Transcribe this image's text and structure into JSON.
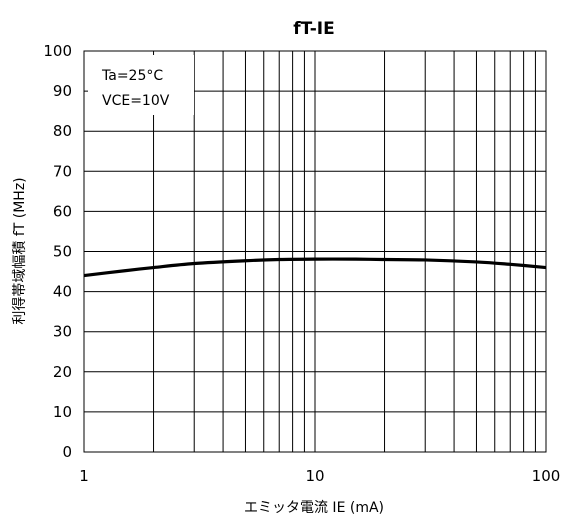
{
  "chart_data": {
    "type": "line",
    "title": "fT-IE",
    "xlabel": "エミッタ電流 IE (mA)",
    "ylabel": "利得帯域幅積 fT (MHz)",
    "xscale": "log",
    "xlim": [
      1,
      100
    ],
    "ylim": [
      0,
      100
    ],
    "xticks": [
      "1",
      "10",
      "100"
    ],
    "yticks": [
      "0",
      "10",
      "20",
      "30",
      "40",
      "50",
      "60",
      "70",
      "80",
      "90",
      "100"
    ],
    "grid": true,
    "annotations": [
      "Ta=25°C",
      "VCE=10V"
    ],
    "series": [
      {
        "x": [
          1,
          1.5,
          2,
          3,
          5,
          7,
          10,
          15,
          20,
          30,
          50,
          70,
          100
        ],
        "y": [
          44,
          45.2,
          46,
          47,
          47.7,
          48,
          48.1,
          48.1,
          48,
          47.9,
          47.4,
          46.8,
          46
        ]
      }
    ]
  }
}
